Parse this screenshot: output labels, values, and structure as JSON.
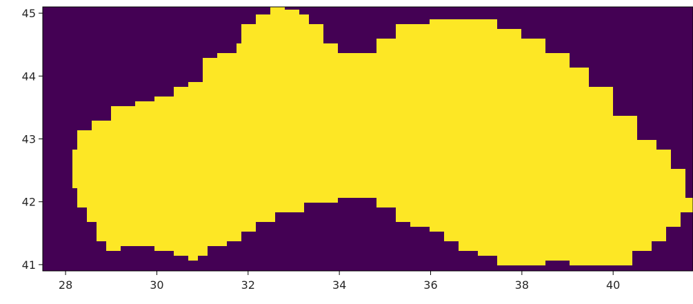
{
  "chart_data": {
    "type": "heatmap",
    "title": "",
    "xlabel": "",
    "ylabel": "",
    "xlim": [
      27.5,
      41.75
    ],
    "ylim": [
      40.9,
      45.1
    ],
    "x_ticks": [
      28,
      30,
      32,
      34,
      36,
      38,
      40
    ],
    "y_ticks": [
      41,
      42,
      43,
      44,
      45
    ],
    "x_tick_labels": [
      "28",
      "30",
      "32",
      "34",
      "36",
      "38",
      "40"
    ],
    "y_tick_labels": [
      "41",
      "42",
      "43",
      "44",
      "45"
    ],
    "grid": false,
    "legend": "none",
    "colormap": "viridis",
    "value_range": [
      0,
      1
    ],
    "colors": {
      "0": "#440154",
      "1": "#fde725"
    },
    "mask_value": 1,
    "background_value": 0,
    "region_top_edge": [
      [
        28.1,
        42.8
      ],
      [
        28.3,
        43.1
      ],
      [
        28.6,
        43.3
      ],
      [
        29.0,
        43.5
      ],
      [
        29.5,
        43.6
      ],
      [
        30.0,
        43.65
      ],
      [
        30.4,
        43.8
      ],
      [
        30.7,
        43.9
      ],
      [
        31.0,
        44.3
      ],
      [
        31.3,
        44.4
      ],
      [
        31.7,
        44.5
      ],
      [
        31.9,
        44.8
      ],
      [
        32.2,
        44.95
      ],
      [
        32.5,
        45.1
      ],
      [
        32.8,
        45.05
      ],
      [
        33.1,
        44.95
      ],
      [
        33.3,
        44.8
      ],
      [
        33.6,
        44.5
      ],
      [
        34.0,
        44.4
      ],
      [
        34.4,
        44.4
      ],
      [
        34.8,
        44.6
      ],
      [
        35.2,
        44.8
      ],
      [
        35.6,
        44.85
      ],
      [
        36.0,
        44.9
      ],
      [
        36.5,
        44.9
      ],
      [
        37.0,
        44.9
      ],
      [
        37.5,
        44.75
      ],
      [
        38.0,
        44.6
      ],
      [
        38.5,
        44.4
      ],
      [
        39.0,
        44.1
      ],
      [
        39.5,
        43.8
      ],
      [
        40.0,
        43.4
      ],
      [
        40.5,
        43.0
      ],
      [
        41.0,
        42.8
      ],
      [
        41.3,
        42.5
      ],
      [
        41.6,
        42.1
      ],
      [
        41.75,
        41.8
      ]
    ],
    "region_bottom_edge": [
      [
        41.75,
        41.8
      ],
      [
        41.5,
        41.6
      ],
      [
        41.2,
        41.4
      ],
      [
        40.8,
        41.2
      ],
      [
        40.4,
        41.0
      ],
      [
        39.9,
        40.95
      ],
      [
        39.5,
        41.0
      ],
      [
        39.0,
        41.05
      ],
      [
        38.5,
        41.0
      ],
      [
        38.0,
        41.0
      ],
      [
        37.5,
        41.15
      ],
      [
        37.0,
        41.2
      ],
      [
        36.6,
        41.35
      ],
      [
        36.3,
        41.5
      ],
      [
        36.0,
        41.6
      ],
      [
        35.6,
        41.7
      ],
      [
        35.2,
        41.9
      ],
      [
        34.8,
        42.05
      ],
      [
        34.4,
        42.1
      ],
      [
        34.0,
        42.0
      ],
      [
        33.6,
        41.95
      ],
      [
        33.2,
        41.85
      ],
      [
        32.9,
        41.8
      ],
      [
        32.6,
        41.7
      ],
      [
        32.2,
        41.55
      ],
      [
        31.8,
        41.4
      ],
      [
        31.5,
        41.3
      ],
      [
        31.1,
        41.15
      ],
      [
        30.9,
        41.1
      ],
      [
        30.7,
        41.15
      ],
      [
        30.4,
        41.25
      ],
      [
        30.0,
        41.3
      ],
      [
        29.6,
        41.3
      ],
      [
        29.2,
        41.25
      ],
      [
        28.9,
        41.4
      ],
      [
        28.7,
        41.7
      ],
      [
        28.5,
        41.9
      ],
      [
        28.3,
        42.2
      ],
      [
        28.1,
        42.5
      ]
    ]
  }
}
